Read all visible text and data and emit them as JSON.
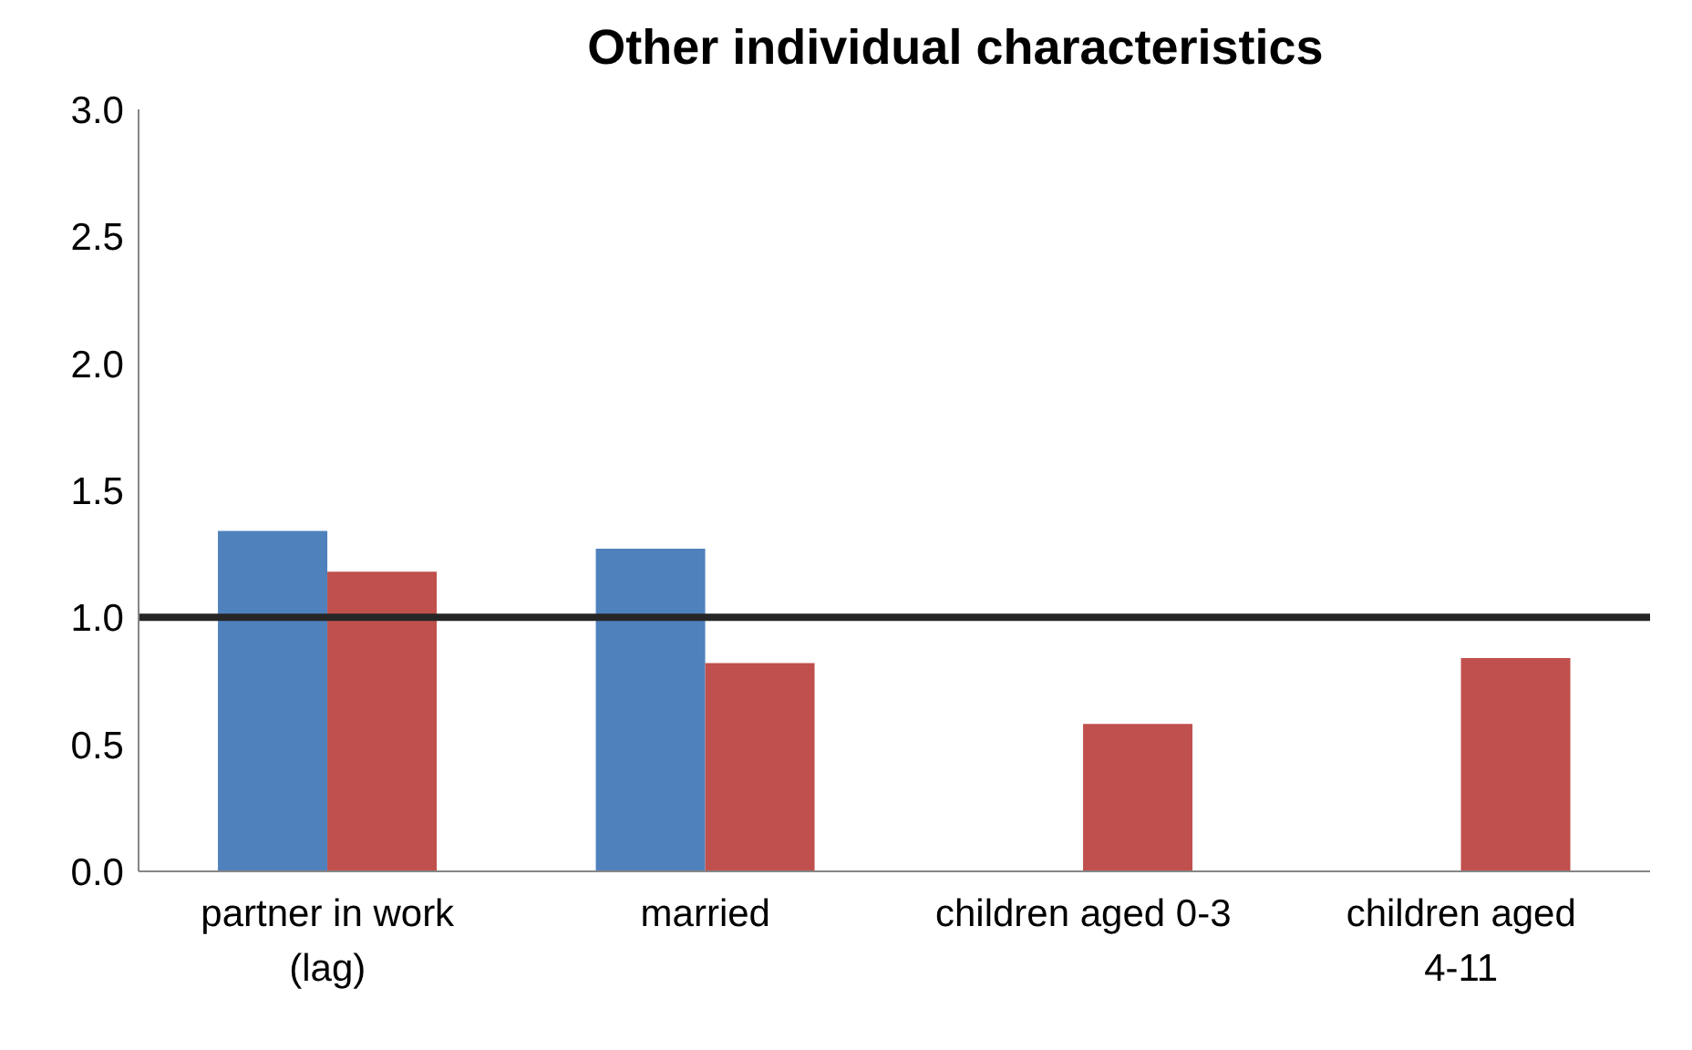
{
  "chart_data": {
    "type": "bar",
    "title": "Other individual characteristics",
    "categories": [
      "partner in work (lag)",
      "married",
      "children aged 0-3",
      "children aged 4-11"
    ],
    "series": [
      {
        "color": "#4f81bd",
        "values": [
          1.34,
          1.27,
          null,
          null
        ]
      },
      {
        "color": "#c0504d",
        "values": [
          1.18,
          0.82,
          0.58,
          0.84
        ]
      }
    ],
    "ylim": [
      0,
      3
    ],
    "yticks": [
      {
        "value": 0,
        "label": "0.0"
      },
      {
        "value": 0.5,
        "label": "0.5"
      },
      {
        "value": 1,
        "label": "1.0"
      },
      {
        "value": 1.5,
        "label": "1.5"
      },
      {
        "value": 2,
        "label": "2.0"
      },
      {
        "value": 2.5,
        "label": "2.5"
      },
      {
        "value": 3,
        "label": "3.0"
      }
    ],
    "ref_lines": [
      {
        "axis": "y",
        "value": 1,
        "color": "#262626"
      }
    ],
    "grid": false,
    "legend": false
  }
}
